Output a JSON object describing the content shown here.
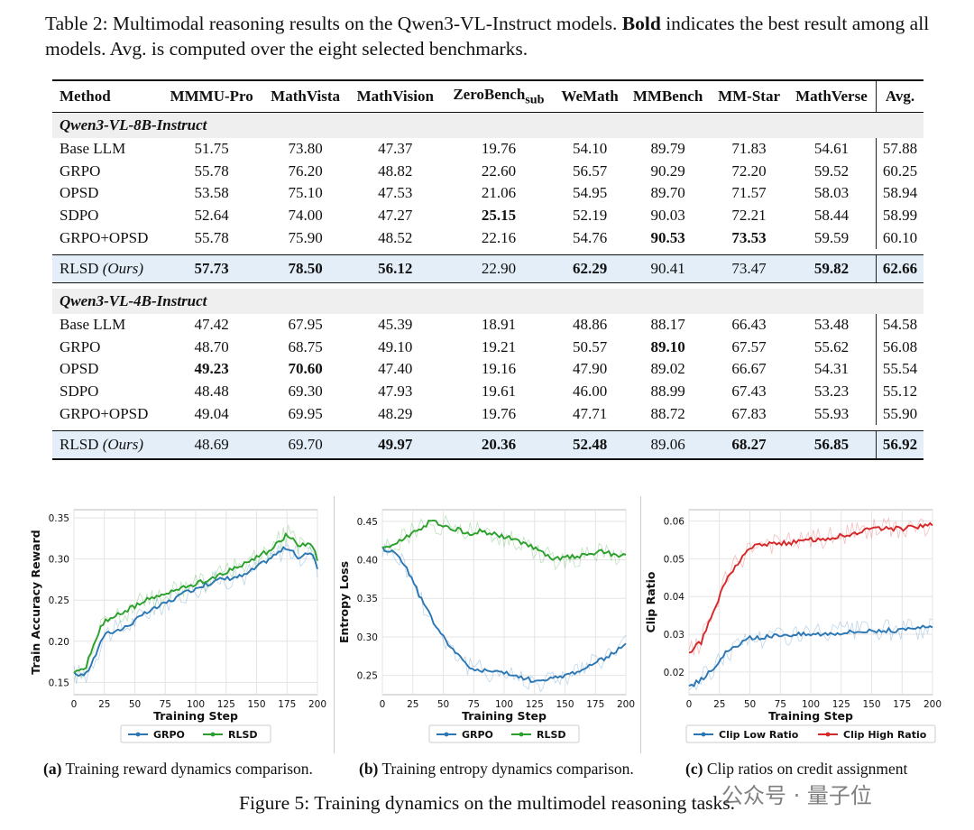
{
  "table": {
    "caption_title": "Table 2:",
    "caption_a": "Multimodal reasoning results on the Qwen3-VL-Instruct models.",
    "caption_bold": "Bold",
    "caption_b": "indicates the best result among all models. Avg. is computed over the eight selected benchmarks.",
    "headers": [
      "Method",
      "MMMU-Pro",
      "MathVista",
      "MathVision",
      "ZeroBench",
      "WeMath",
      "MMBench",
      "MM-Star",
      "MathVerse",
      "Avg."
    ],
    "zerobench_sub": "sub",
    "groups": [
      {
        "name": "Qwen3-VL-8B-Instruct",
        "rows": [
          {
            "method": "Base LLM",
            "values": [
              "51.75",
              "73.80",
              "47.37",
              "19.76",
              "54.10",
              "89.79",
              "71.83",
              "54.61",
              "57.88"
            ],
            "bold": []
          },
          {
            "method": "GRPO",
            "values": [
              "55.78",
              "76.20",
              "48.82",
              "22.60",
              "56.57",
              "90.29",
              "72.20",
              "59.52",
              "60.25"
            ],
            "bold": []
          },
          {
            "method": "OPSD",
            "values": [
              "53.58",
              "75.10",
              "47.53",
              "21.06",
              "54.95",
              "89.70",
              "71.57",
              "58.03",
              "58.94"
            ],
            "bold": []
          },
          {
            "method": "SDPO",
            "values": [
              "52.64",
              "74.00",
              "47.27",
              "25.15",
              "52.19",
              "90.03",
              "72.21",
              "58.44",
              "58.99"
            ],
            "bold": [
              3
            ]
          },
          {
            "method": "GRPO+OPSD",
            "values": [
              "55.78",
              "75.90",
              "48.52",
              "22.16",
              "54.76",
              "90.53",
              "73.53",
              "59.59",
              "60.10"
            ],
            "bold": [
              5,
              6
            ]
          }
        ],
        "ours": {
          "method": "RLSD",
          "suffix": "(Ours)",
          "values": [
            "57.73",
            "78.50",
            "56.12",
            "22.90",
            "62.29",
            "90.41",
            "73.47",
            "59.82",
            "62.66"
          ],
          "bold": [
            0,
            1,
            2,
            4,
            7,
            8
          ]
        }
      },
      {
        "name": "Qwen3-VL-4B-Instruct",
        "rows": [
          {
            "method": "Base LLM",
            "values": [
              "47.42",
              "67.95",
              "45.39",
              "18.91",
              "48.86",
              "88.17",
              "66.43",
              "53.48",
              "54.58"
            ],
            "bold": []
          },
          {
            "method": "GRPO",
            "values": [
              "48.70",
              "68.75",
              "49.10",
              "19.21",
              "50.57",
              "89.10",
              "67.57",
              "55.62",
              "56.08"
            ],
            "bold": [
              5
            ]
          },
          {
            "method": "OPSD",
            "values": [
              "49.23",
              "70.60",
              "47.40",
              "19.16",
              "47.90",
              "89.02",
              "66.67",
              "54.31",
              "55.54"
            ],
            "bold": [
              0,
              1
            ]
          },
          {
            "method": "SDPO",
            "values": [
              "48.48",
              "69.30",
              "47.93",
              "19.61",
              "46.00",
              "88.99",
              "67.43",
              "53.23",
              "55.12"
            ],
            "bold": []
          },
          {
            "method": "GRPO+OPSD",
            "values": [
              "49.04",
              "69.95",
              "48.29",
              "19.76",
              "47.71",
              "88.72",
              "67.83",
              "55.93",
              "55.90"
            ],
            "bold": []
          }
        ],
        "ours": {
          "method": "RLSD",
          "suffix": "(Ours)",
          "values": [
            "48.69",
            "69.70",
            "49.97",
            "20.36",
            "52.48",
            "89.06",
            "68.27",
            "56.85",
            "56.92"
          ],
          "bold": [
            2,
            3,
            4,
            6,
            7,
            8
          ]
        }
      }
    ]
  },
  "figure": {
    "caption": "Figure 5: Training dynamics on the multimodel reasoning tasks.",
    "subcaptions": [
      {
        "label": "(a)",
        "text": "Training reward dynamics comparison."
      },
      {
        "label": "(b)",
        "text": "Training entropy dynamics comparison."
      },
      {
        "label": "(c)",
        "text": "Clip ratios on credit assignment"
      }
    ],
    "watermark": "公众号 · 量子位"
  },
  "chart_data": [
    {
      "type": "line",
      "xlabel": "Training Step",
      "ylabel": "Train Accuracy Reward",
      "xlim": [
        0,
        200
      ],
      "ylim": [
        0.135,
        0.36
      ],
      "xticks": [
        0,
        25,
        50,
        75,
        100,
        125,
        150,
        175,
        200
      ],
      "yticks": [
        0.15,
        0.2,
        0.25,
        0.3,
        0.35
      ],
      "grid": true,
      "legend": "bottom",
      "x": [
        0,
        10,
        20,
        25,
        40,
        60,
        80,
        100,
        120,
        140,
        160,
        175,
        185,
        195,
        200
      ],
      "series": [
        {
          "name": "GRPO",
          "color": "#2b77b5",
          "values": [
            0.16,
            0.16,
            0.19,
            0.21,
            0.215,
            0.235,
            0.25,
            0.265,
            0.275,
            0.28,
            0.3,
            0.315,
            0.3,
            0.31,
            0.29
          ]
        },
        {
          "name": "RLSD",
          "color": "#2ca02c",
          "values": [
            0.16,
            0.17,
            0.21,
            0.225,
            0.235,
            0.25,
            0.26,
            0.27,
            0.28,
            0.295,
            0.31,
            0.33,
            0.315,
            0.32,
            0.3
          ]
        }
      ]
    },
    {
      "type": "line",
      "xlabel": "Training Step",
      "ylabel": "Entropy Loss",
      "xlim": [
        0,
        200
      ],
      "ylim": [
        0.225,
        0.465
      ],
      "xticks": [
        0,
        25,
        50,
        75,
        100,
        125,
        150,
        175,
        200
      ],
      "yticks": [
        0.25,
        0.3,
        0.35,
        0.4,
        0.45
      ],
      "grid": true,
      "legend": "bottom",
      "x": [
        0,
        10,
        20,
        30,
        40,
        50,
        60,
        70,
        75,
        80,
        100,
        120,
        130,
        140,
        160,
        180,
        200
      ],
      "series": [
        {
          "name": "GRPO",
          "color": "#2b77b5",
          "values": [
            0.415,
            0.41,
            0.39,
            0.355,
            0.325,
            0.3,
            0.28,
            0.262,
            0.258,
            0.257,
            0.253,
            0.245,
            0.242,
            0.246,
            0.255,
            0.27,
            0.29
          ]
        },
        {
          "name": "RLSD",
          "color": "#2ca02c",
          "values": [
            0.415,
            0.42,
            0.43,
            0.44,
            0.45,
            0.445,
            0.44,
            0.435,
            0.435,
            0.437,
            0.43,
            0.42,
            0.41,
            0.4,
            0.405,
            0.41,
            0.405
          ]
        }
      ]
    },
    {
      "type": "line",
      "xlabel": "Training Step",
      "ylabel": "Clip Ratio",
      "xlim": [
        0,
        200
      ],
      "ylim": [
        0.014,
        0.063
      ],
      "xticks": [
        0,
        25,
        50,
        75,
        100,
        125,
        150,
        175,
        200
      ],
      "yticks": [
        0.02,
        0.03,
        0.04,
        0.05,
        0.06
      ],
      "grid": true,
      "legend": "bottom",
      "x": [
        0,
        10,
        20,
        30,
        40,
        50,
        60,
        75,
        100,
        125,
        150,
        175,
        200
      ],
      "series": [
        {
          "name": "Clip Low Ratio",
          "color": "#2b77b5",
          "values": [
            0.016,
            0.018,
            0.021,
            0.025,
            0.027,
            0.029,
            0.029,
            0.03,
            0.03,
            0.0305,
            0.031,
            0.031,
            0.032
          ]
        },
        {
          "name": "Clip High Ratio",
          "color": "#d62728",
          "values": [
            0.025,
            0.028,
            0.036,
            0.044,
            0.049,
            0.053,
            0.054,
            0.054,
            0.055,
            0.056,
            0.058,
            0.058,
            0.059
          ]
        }
      ]
    }
  ]
}
